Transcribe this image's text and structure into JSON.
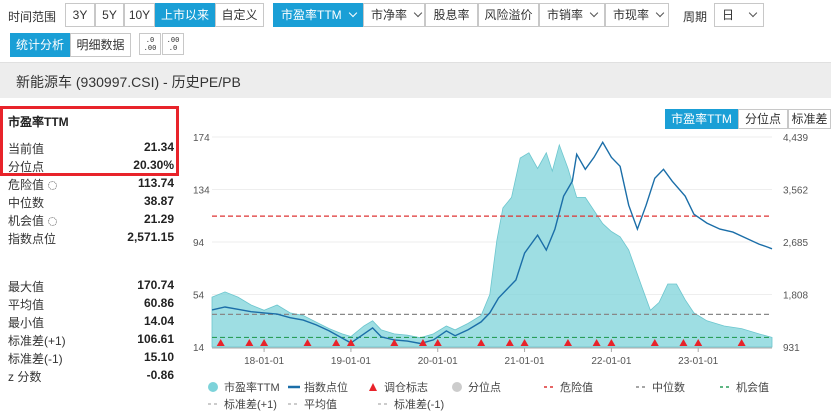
{
  "toolbar": {
    "time_range_label": "时间范围",
    "ranges": [
      "3Y",
      "5Y",
      "10Y",
      "上市以来",
      "自定义"
    ],
    "active_range": "上市以来",
    "metrics": [
      {
        "label": "市盈率TTM",
        "dropdown": true,
        "active": true
      },
      {
        "label": "市净率",
        "dropdown": true,
        "active": false
      },
      {
        "label": "股息率",
        "dropdown": false,
        "active": false
      },
      {
        "label": "风险溢价",
        "dropdown": false,
        "active": false
      },
      {
        "label": "市销率",
        "dropdown": true,
        "active": false
      },
      {
        "label": "市现率",
        "dropdown": true,
        "active": false
      }
    ],
    "period_label": "周期",
    "period_value": "日",
    "stats_tab": "统计分析",
    "detail_tab": "明细数据",
    "decimal_dec": ".0\n.00",
    "decimal_inc": ".00\n.0"
  },
  "title": "新能源车 (930997.CSI) - 历史PE/PB",
  "sidebar": {
    "header": "市盈率TTM",
    "rows1": [
      {
        "k": "当前值",
        "v": "21.34"
      },
      {
        "k": "分位点",
        "v": "20.30%"
      },
      {
        "k": "危险值",
        "v": "113.74",
        "gear": true
      },
      {
        "k": "中位数",
        "v": "38.87"
      },
      {
        "k": "机会值",
        "v": "21.29",
        "gear": true
      },
      {
        "k": "指数点位",
        "v": "2,571.15"
      }
    ],
    "rows2": [
      {
        "k": "最大值",
        "v": "170.74"
      },
      {
        "k": "平均值",
        "v": "60.86"
      },
      {
        "k": "最小值",
        "v": "14.04"
      },
      {
        "k": "标准差(+1)",
        "v": "106.61"
      },
      {
        "k": "标准差(-1)",
        "v": "15.10"
      },
      {
        "k": "z 分数",
        "v": "-0.86"
      }
    ]
  },
  "chart_tabs": {
    "items": [
      "市盈率TTM",
      "分位点",
      "标准差"
    ],
    "active": "市盈率TTM"
  },
  "chart_data": {
    "type": "area",
    "x_ticks": [
      "18-01-01",
      "19-01-01",
      "20-01-01",
      "21-01-01",
      "22-01-01",
      "23-01-01"
    ],
    "x_tick_years": [
      2018,
      2019,
      2020,
      2021,
      2022,
      2023
    ],
    "x_range": [
      2017.4,
      2023.85
    ],
    "y_left_ticks": [
      "174",
      "134",
      "94",
      "54",
      "14"
    ],
    "y_left_range": [
      14,
      174
    ],
    "y_right_ticks": [
      "4,439",
      "3,562",
      "2,685",
      "1,808",
      "931"
    ],
    "y_right_range": [
      931,
      4439
    ],
    "lines": {
      "danger": 113.74,
      "median": 38.87,
      "opportunity": 21.29,
      "std_plus": 106.61,
      "std_minus": 15.1
    },
    "pe_series": [
      [
        2017.4,
        52
      ],
      [
        2017.55,
        56
      ],
      [
        2017.7,
        52
      ],
      [
        2017.85,
        46
      ],
      [
        2018.0,
        42
      ],
      [
        2018.15,
        46
      ],
      [
        2018.3,
        40
      ],
      [
        2018.45,
        38
      ],
      [
        2018.6,
        33
      ],
      [
        2018.75,
        28
      ],
      [
        2018.9,
        24
      ],
      [
        2019.0,
        22
      ],
      [
        2019.15,
        30
      ],
      [
        2019.25,
        34
      ],
      [
        2019.35,
        27
      ],
      [
        2019.5,
        24
      ],
      [
        2019.65,
        23
      ],
      [
        2019.8,
        21
      ],
      [
        2019.95,
        24
      ],
      [
        2020.1,
        30
      ],
      [
        2020.2,
        27
      ],
      [
        2020.35,
        32
      ],
      [
        2020.5,
        38
      ],
      [
        2020.6,
        54
      ],
      [
        2020.68,
        95
      ],
      [
        2020.75,
        120
      ],
      [
        2020.85,
        128
      ],
      [
        2020.95,
        158
      ],
      [
        2021.05,
        162
      ],
      [
        2021.15,
        150
      ],
      [
        2021.25,
        162
      ],
      [
        2021.32,
        148
      ],
      [
        2021.4,
        168
      ],
      [
        2021.5,
        150
      ],
      [
        2021.6,
        128
      ],
      [
        2021.7,
        128
      ],
      [
        2021.8,
        118
      ],
      [
        2021.9,
        108
      ],
      [
        2022.0,
        102
      ],
      [
        2022.1,
        98
      ],
      [
        2022.2,
        88
      ],
      [
        2022.35,
        60
      ],
      [
        2022.45,
        42
      ],
      [
        2022.55,
        48
      ],
      [
        2022.65,
        62
      ],
      [
        2022.75,
        62
      ],
      [
        2022.85,
        50
      ],
      [
        2022.95,
        40
      ],
      [
        2023.1,
        34
      ],
      [
        2023.3,
        30
      ],
      [
        2023.5,
        28
      ],
      [
        2023.7,
        24
      ],
      [
        2023.85,
        21.34
      ]
    ],
    "index_series": [
      [
        2017.4,
        1550
      ],
      [
        2017.55,
        1600
      ],
      [
        2017.7,
        1560
      ],
      [
        2017.85,
        1520
      ],
      [
        2018.0,
        1500
      ],
      [
        2018.15,
        1480
      ],
      [
        2018.3,
        1420
      ],
      [
        2018.45,
        1380
      ],
      [
        2018.6,
        1300
      ],
      [
        2018.75,
        1200
      ],
      [
        2018.9,
        1080
      ],
      [
        2019.0,
        1000
      ],
      [
        2019.15,
        1150
      ],
      [
        2019.25,
        1250
      ],
      [
        2019.35,
        1100
      ],
      [
        2019.5,
        1050
      ],
      [
        2019.65,
        1030
      ],
      [
        2019.8,
        990
      ],
      [
        2019.95,
        1050
      ],
      [
        2020.1,
        1200
      ],
      [
        2020.2,
        1120
      ],
      [
        2020.35,
        1220
      ],
      [
        2020.5,
        1350
      ],
      [
        2020.6,
        1500
      ],
      [
        2020.7,
        1750
      ],
      [
        2020.8,
        1900
      ],
      [
        2020.9,
        2050
      ],
      [
        2021.0,
        2500
      ],
      [
        2021.15,
        2800
      ],
      [
        2021.25,
        2550
      ],
      [
        2021.35,
        2900
      ],
      [
        2021.45,
        3450
      ],
      [
        2021.55,
        3700
      ],
      [
        2021.6,
        4150
      ],
      [
        2021.7,
        3900
      ],
      [
        2021.8,
        4100
      ],
      [
        2021.9,
        4350
      ],
      [
        2022.0,
        4100
      ],
      [
        2022.1,
        3950
      ],
      [
        2022.2,
        3300
      ],
      [
        2022.3,
        2900
      ],
      [
        2022.4,
        3300
      ],
      [
        2022.5,
        3750
      ],
      [
        2022.6,
        3900
      ],
      [
        2022.7,
        3700
      ],
      [
        2022.85,
        3450
      ],
      [
        2022.95,
        3150
      ],
      [
        2023.1,
        3000
      ],
      [
        2023.25,
        2900
      ],
      [
        2023.4,
        2850
      ],
      [
        2023.55,
        2750
      ],
      [
        2023.7,
        2650
      ],
      [
        2023.8,
        2600
      ],
      [
        2023.85,
        2571.15
      ]
    ],
    "rebalance_marks": [
      2017.5,
      2017.83,
      2018.0,
      2018.5,
      2018.83,
      2019.0,
      2019.5,
      2019.83,
      2020.0,
      2020.5,
      2020.83,
      2021.0,
      2021.5,
      2021.83,
      2022.0,
      2022.5,
      2022.83,
      2023.0,
      2023.5
    ],
    "legend": [
      {
        "name": "市盈率TTM",
        "kind": "dot",
        "color": "#7dd3da"
      },
      {
        "name": "指数点位",
        "kind": "line",
        "color": "#1b6ea8"
      },
      {
        "name": "调仓标志",
        "kind": "triangle",
        "color": "#e8232a"
      },
      {
        "name": "分位点",
        "kind": "dot",
        "color": "#cccccc"
      },
      {
        "name": "危险值",
        "kind": "dash",
        "color": "#d33"
      },
      {
        "name": "中位数",
        "kind": "dash",
        "color": "#888"
      },
      {
        "name": "机会值",
        "kind": "dash",
        "color": "#2a9d5a"
      },
      {
        "name": "标准差(+1)",
        "kind": "dash",
        "color": "#bbbbbb"
      },
      {
        "name": "平均值",
        "kind": "dash",
        "color": "#bbbbbb"
      },
      {
        "name": "标准差(-1)",
        "kind": "dash",
        "color": "#bbbbbb"
      }
    ]
  },
  "colors": {
    "accent": "#1a9fd6",
    "area": "#7dd3da",
    "index_line": "#1b6ea8",
    "danger": "#d33",
    "median": "#888",
    "opportunity": "#2a9d5a",
    "highlight_box": "#e8232a"
  }
}
